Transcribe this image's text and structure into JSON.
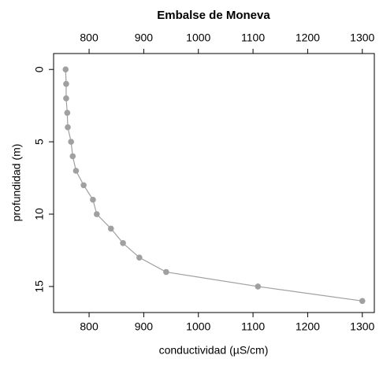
{
  "chart_data": {
    "type": "line",
    "title": "Embalse de Moneva",
    "x_label": "conductividad (µS/cm)",
    "y_label": "profundidad (m)",
    "series": [
      {
        "color": "#a0a0a0",
        "x": [
          757,
          758,
          758,
          760,
          761,
          767,
          770,
          776,
          790,
          807,
          814,
          840,
          862,
          892,
          941,
          1109,
          1300
        ],
        "values": [
          0,
          1,
          2,
          3,
          4,
          5,
          6,
          7,
          8,
          9,
          10,
          11,
          12,
          13,
          14,
          15,
          16
        ]
      }
    ],
    "xlim": [
      735,
      1322
    ],
    "xticks": [
      800,
      900,
      1000,
      1100,
      1200,
      1300
    ],
    "ylim": [
      16.8,
      -1.1
    ],
    "yticks": [
      0,
      5,
      10,
      15
    ]
  }
}
